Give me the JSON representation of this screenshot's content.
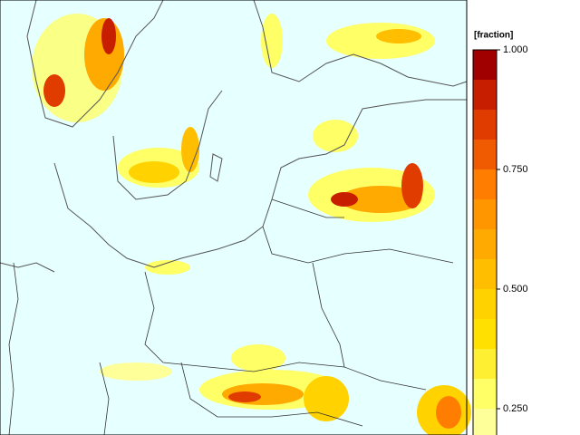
{
  "colorbar": {
    "title": "[fraction]",
    "lim": [
      0.1875,
      1.0
    ],
    "colors": [
      "#ffff99",
      "#ffff66",
      "#ffef33",
      "#ffe000",
      "#ffd200",
      "#ffbe00",
      "#ffaa00",
      "#ff9600",
      "#ff7d00",
      "#f05a00",
      "#e03c00",
      "#c81e00",
      "#a00000"
    ],
    "ticks": [
      {
        "value": 0.25,
        "label": "0.250"
      },
      {
        "value": 0.5,
        "label": "0.500"
      },
      {
        "value": 0.75,
        "label": "0.750"
      },
      {
        "value": 1.0,
        "label": "1.000"
      }
    ]
  }
}
